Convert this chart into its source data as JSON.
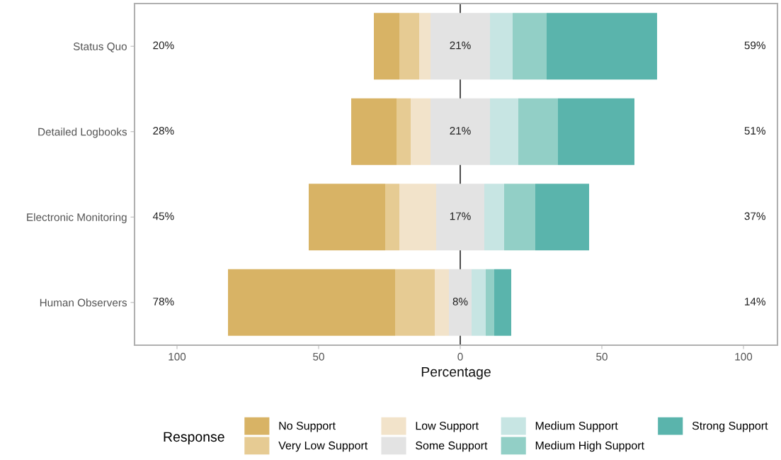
{
  "chart_data": {
    "type": "bar",
    "orientation": "horizontal",
    "xlabel": "Percentage",
    "legend_title": "Response",
    "legend": "bottom",
    "grid": false,
    "categories": [
      "Status Quo",
      "Detailed Logbooks",
      "Electronic Monitoring",
      "Human Observers"
    ],
    "xlim": [
      -115,
      112
    ],
    "xticks": [
      {
        "value": -100,
        "label": "100"
      },
      {
        "value": -50,
        "label": "50"
      },
      0,
      50,
      100
    ],
    "ref_lines": [
      {
        "axis": "x",
        "value": 0,
        "color": "#000000"
      }
    ],
    "series": [
      {
        "name": "No Support",
        "color": "#d8b365",
        "values": [
          9,
          16,
          27,
          59
        ],
        "base": [
          -30.5,
          -38.5,
          -53.5,
          -82
        ]
      },
      {
        "name": "Very Low Support",
        "color": "#e6cb93",
        "values": [
          7,
          5,
          5,
          14
        ],
        "base": [
          -21.5,
          -22.5,
          -26.5,
          -23
        ]
      },
      {
        "name": "Low Support",
        "color": "#f2e3ca",
        "values": [
          4,
          7,
          13,
          5
        ],
        "base": [
          -14.5,
          -17.5,
          -21.5,
          -9
        ]
      },
      {
        "name": "Some Support",
        "color": "#e3e3e3",
        "values": [
          21,
          21,
          17,
          8
        ],
        "base": [
          -10.5,
          -10.5,
          -8.5,
          -4
        ],
        "value_labels": [
          "21%",
          "21%",
          "17%",
          "8%"
        ]
      },
      {
        "name": "Medium Support",
        "color": "#c7e5e3",
        "values": [
          8,
          10,
          7,
          5
        ],
        "base": [
          10.5,
          10.5,
          8.5,
          4
        ]
      },
      {
        "name": "Medium High Support",
        "color": "#92cfc6",
        "values": [
          12,
          14,
          11,
          3
        ],
        "base": [
          18.5,
          20.5,
          15.5,
          9
        ]
      },
      {
        "name": "Strong Support",
        "color": "#5ab4ac",
        "values": [
          39,
          27,
          19,
          6
        ],
        "base": [
          30.5,
          34.5,
          26.5,
          12
        ]
      }
    ],
    "annotations": [
      "20%",
      "28%",
      "45%",
      "78%",
      "59%",
      "51%",
      "37%",
      "14%"
    ]
  }
}
